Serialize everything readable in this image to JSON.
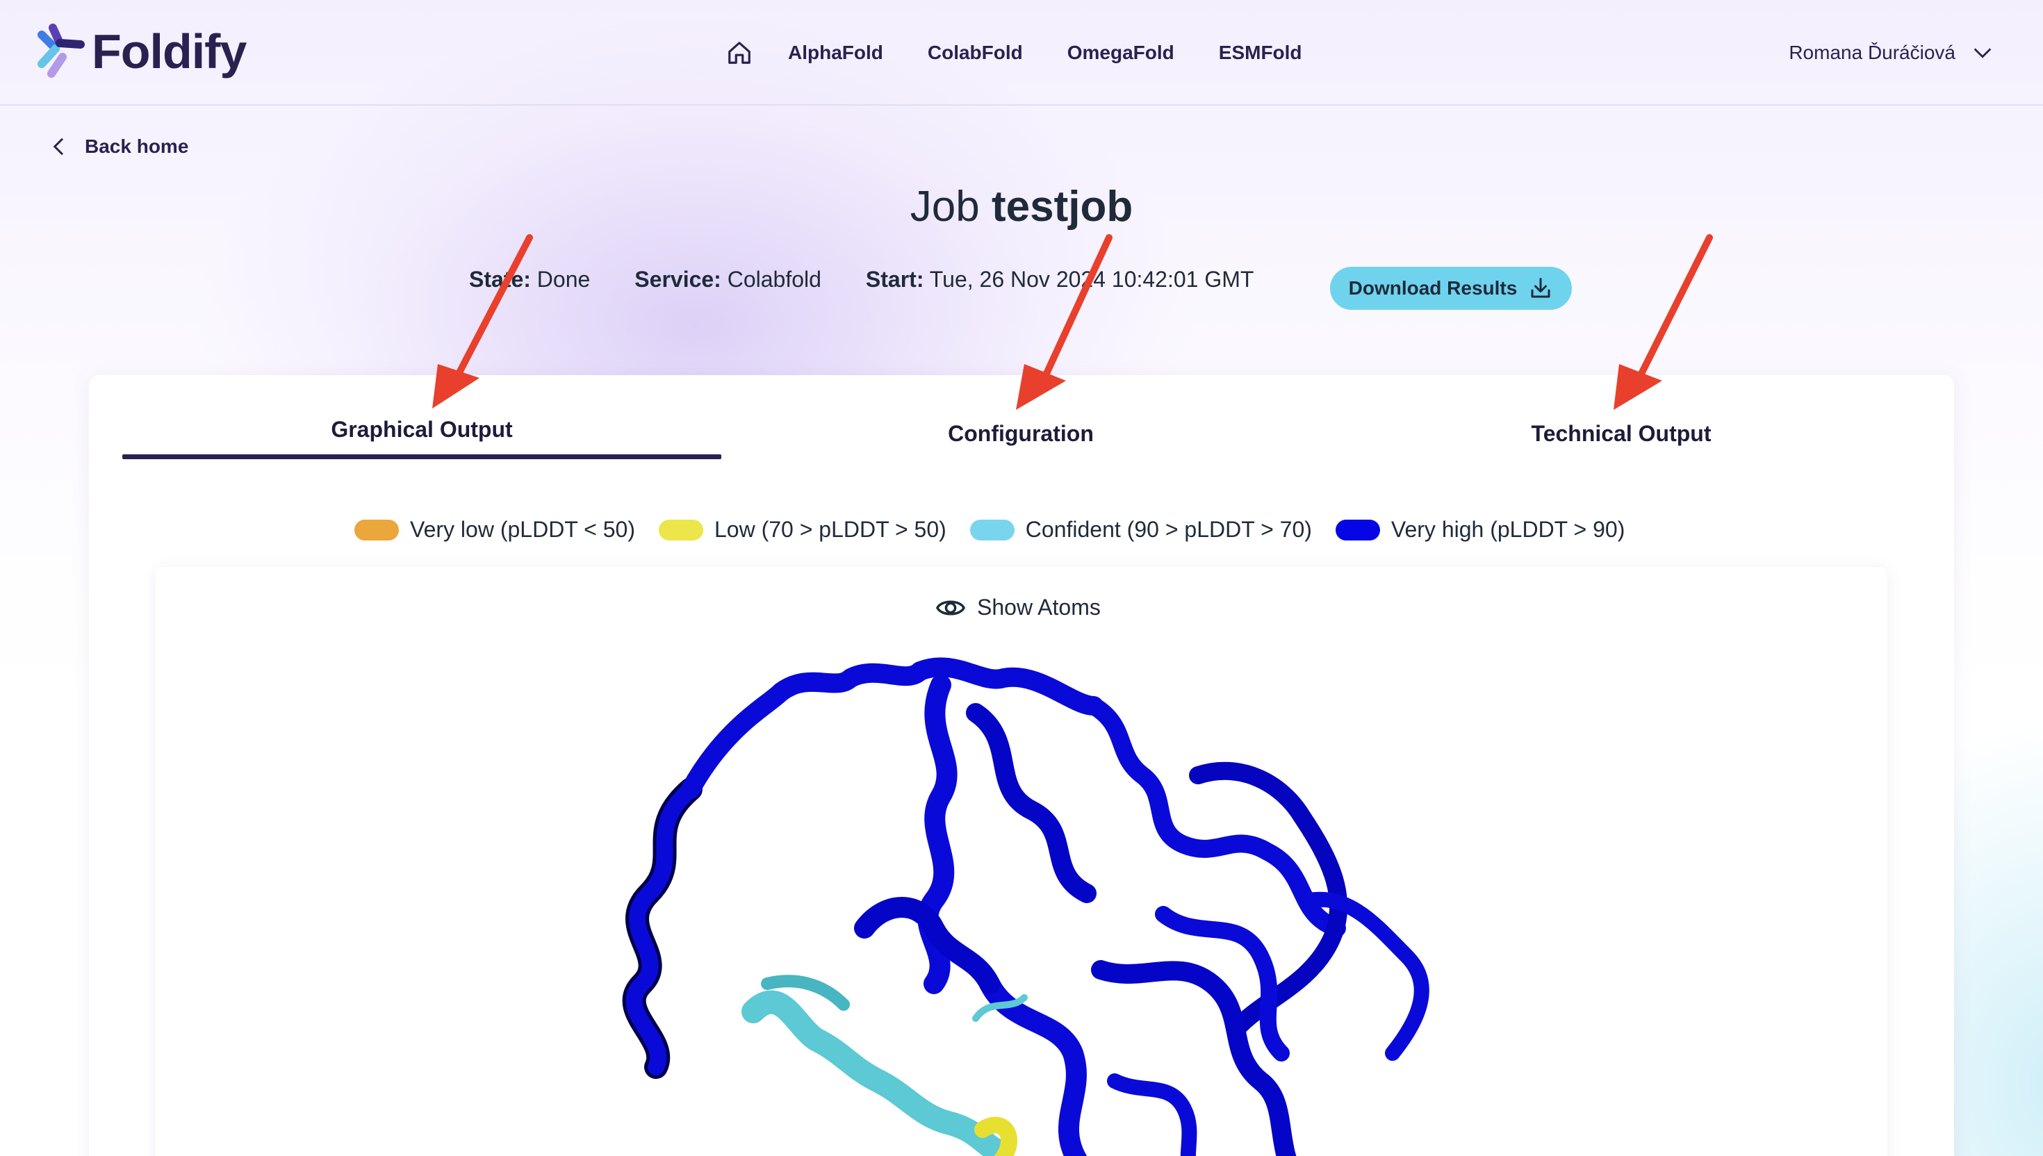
{
  "header": {
    "brand": "Foldify",
    "nav": [
      "AlphaFold",
      "ColabFold",
      "OmegaFold",
      "ESMFold"
    ],
    "user_name": "Romana Ďuráčiová"
  },
  "back_link": "Back home",
  "job": {
    "title_prefix": "Job",
    "name": "testjob",
    "state_label": "State:",
    "state": "Done",
    "service_label": "Service:",
    "service": "Colabfold",
    "start_label": "Start:",
    "start": "Tue, 26 Nov 2024 10:42:01 GMT",
    "download_label": "Download Results"
  },
  "tabs": [
    "Graphical Output",
    "Configuration",
    "Technical Output"
  ],
  "active_tab": "Graphical Output",
  "legend": [
    {
      "label": "Very low (pLDDT < 50)",
      "color": "#eba63c"
    },
    {
      "label": "Low (70 > pLDDT > 50)",
      "color": "#ece64a"
    },
    {
      "label": "Confident (90 > pLDDT > 70)",
      "color": "#79d5ee"
    },
    {
      "label": "Very high (pLDDT > 90)",
      "color": "#0505e6"
    }
  ],
  "viewer": {
    "show_atoms_label": "Show Atoms"
  },
  "colors": {
    "brand_dark": "#2a2150",
    "accent_button": "#6fd3ee",
    "annotation_arrow": "#e8402c"
  }
}
